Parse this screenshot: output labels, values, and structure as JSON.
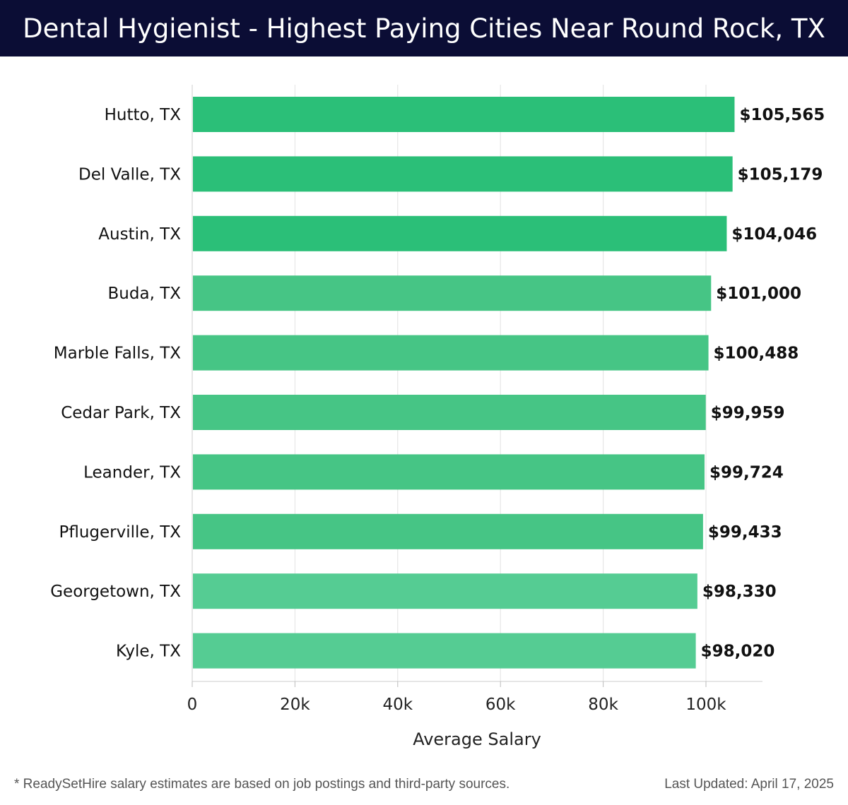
{
  "header": {
    "title": "Dental Hygienist - Highest Paying Cities Near Round Rock, TX"
  },
  "chart_data": {
    "type": "bar",
    "orientation": "horizontal",
    "title": "Dental Hygienist - Highest Paying Cities Near Round Rock, TX",
    "xlabel": "Average Salary",
    "ylabel": "",
    "categories": [
      "Hutto, TX",
      "Del Valle, TX",
      "Austin, TX",
      "Buda, TX",
      "Marble Falls, TX",
      "Cedar Park, TX",
      "Leander, TX",
      "Pflugerville, TX",
      "Georgetown, TX",
      "Kyle, TX"
    ],
    "values": [
      105565,
      105179,
      104046,
      101000,
      100488,
      99959,
      99724,
      99433,
      98330,
      98020
    ],
    "value_labels": [
      "$105,565",
      "$105,179",
      "$104,046",
      "$101,000",
      "$100,488",
      "$99,959",
      "$99,724",
      "$99,433",
      "$98,330",
      "$98,020"
    ],
    "xticks": [
      0,
      20000,
      40000,
      60000,
      80000,
      100000
    ],
    "xtick_labels": [
      "0",
      "20k",
      "40k",
      "60k",
      "80k",
      "100k"
    ],
    "xlim": [
      0,
      111000
    ],
    "grid": true,
    "colors": {
      "bar_top": "#2bbf78",
      "bar_mid": "#46c585",
      "bar_low": "#55cc93",
      "grid": "#e2e2e2",
      "axis": "#cccccc"
    }
  },
  "footer": {
    "note": "* ReadySetHire salary estimates are based on job postings and third-party sources.",
    "updated": "Last Updated: April 17, 2025"
  }
}
